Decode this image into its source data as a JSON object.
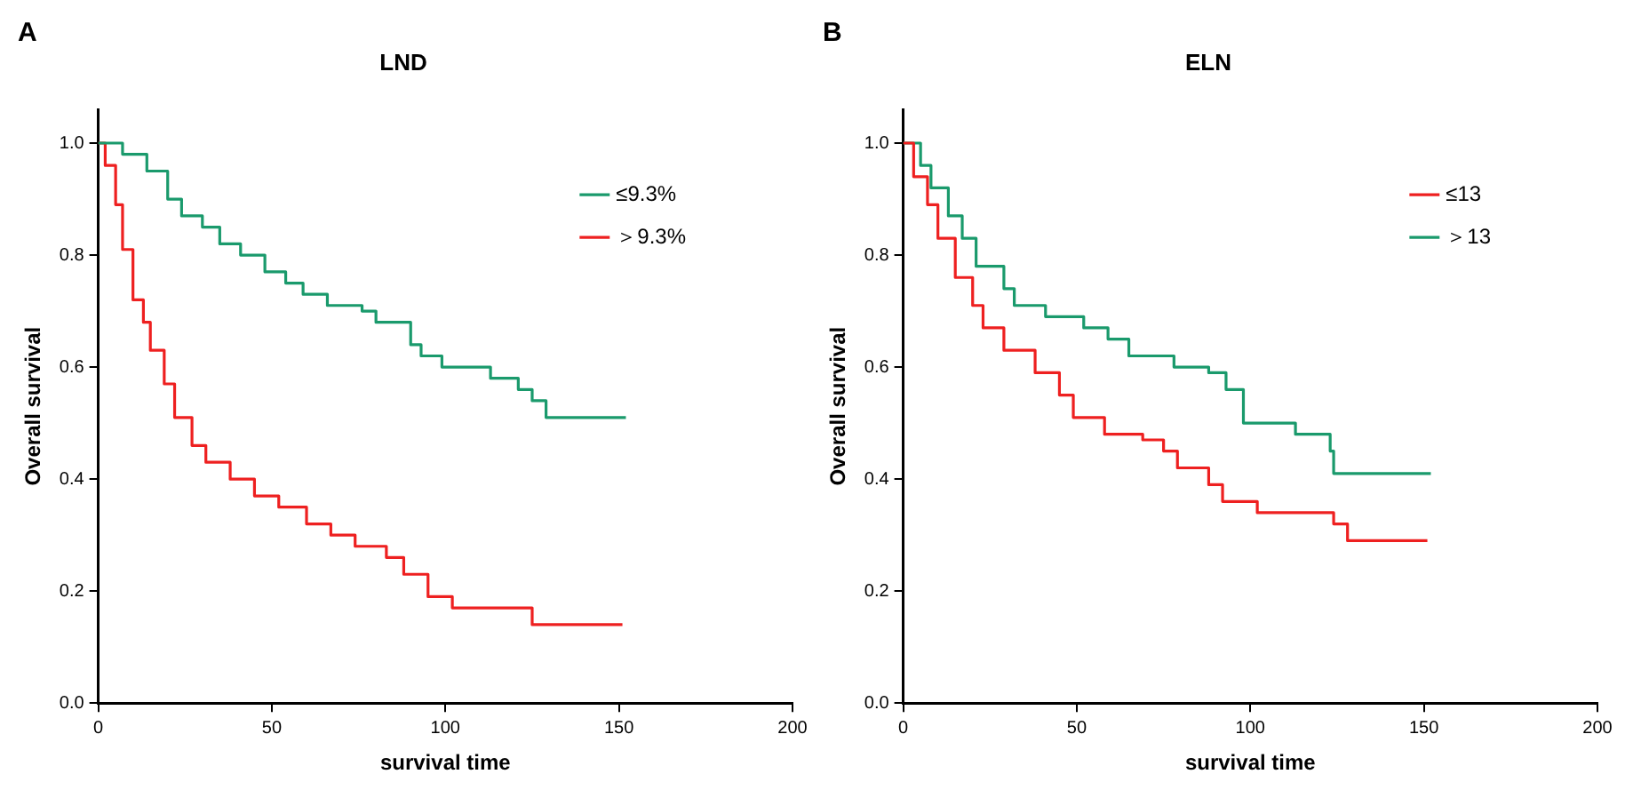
{
  "chart_data": [
    {
      "type": "step",
      "title": "LND",
      "xlabel": "survival time",
      "ylabel": "Overall survival",
      "annotations": [
        "A"
      ],
      "xlim": [
        0,
        200
      ],
      "xticks": [
        0,
        50,
        100,
        150,
        200
      ],
      "ylim": [
        0,
        1.06
      ],
      "yticks": [
        {
          "value": 0,
          "label": "0.0"
        },
        {
          "value": 0.2,
          "label": "0.2"
        },
        {
          "value": 0.4,
          "label": "0.4"
        },
        {
          "value": 0.6,
          "label": "0.6"
        },
        {
          "value": 0.8,
          "label": "0.8"
        },
        {
          "value": 1,
          "label": "1.0"
        }
      ],
      "grid": false,
      "legend": "top right",
      "marker": "none",
      "series": [
        {
          "name": "≤9.3%",
          "color": "#1a9a6c",
          "x": [
            0,
            7,
            14,
            20,
            24,
            30,
            35,
            41,
            48,
            54,
            59,
            66,
            76,
            80,
            88,
            90,
            93,
            99,
            113,
            121,
            125,
            129,
            152
          ],
          "values": [
            1,
            0.98,
            0.95,
            0.9,
            0.87,
            0.85,
            0.82,
            0.8,
            0.77,
            0.75,
            0.73,
            0.71,
            0.7,
            0.68,
            0.68,
            0.64,
            0.62,
            0.6,
            0.58,
            0.56,
            0.54,
            0.51,
            0.51
          ]
        },
        {
          "name": "＞9.3%",
          "color": "#ee2020",
          "x": [
            0,
            2,
            5,
            7,
            10,
            13,
            15,
            19,
            22,
            27,
            31,
            38,
            45,
            52,
            60,
            67,
            74,
            83,
            88,
            95,
            102,
            125,
            151
          ],
          "values": [
            1,
            0.96,
            0.89,
            0.81,
            0.72,
            0.68,
            0.63,
            0.57,
            0.51,
            0.46,
            0.43,
            0.4,
            0.37,
            0.35,
            0.32,
            0.3,
            0.28,
            0.26,
            0.23,
            0.19,
            0.17,
            0.14,
            0.14
          ]
        }
      ]
    },
    {
      "type": "step",
      "title": "ELN",
      "xlabel": "survival time",
      "ylabel": "Overall survival",
      "annotations": [
        "B"
      ],
      "xlim": [
        0,
        200
      ],
      "xticks": [
        0,
        50,
        100,
        150,
        200
      ],
      "ylim": [
        0,
        1.06
      ],
      "yticks": [
        {
          "value": 0,
          "label": "0.0"
        },
        {
          "value": 0.2,
          "label": "0.2"
        },
        {
          "value": 0.4,
          "label": "0.4"
        },
        {
          "value": 0.6,
          "label": "0.6"
        },
        {
          "value": 0.8,
          "label": "0.8"
        },
        {
          "value": 1,
          "label": "1.0"
        }
      ],
      "grid": false,
      "legend": "top right",
      "marker": "none",
      "series": [
        {
          "name": "≤13",
          "color": "#ee2020",
          "x": [
            0,
            3,
            7,
            10,
            15,
            20,
            23,
            29,
            38,
            45,
            49,
            58,
            69,
            75,
            79,
            88,
            92,
            102,
            124,
            128,
            151
          ],
          "values": [
            1,
            0.94,
            0.89,
            0.83,
            0.76,
            0.71,
            0.67,
            0.63,
            0.59,
            0.55,
            0.51,
            0.48,
            0.47,
            0.45,
            0.42,
            0.39,
            0.36,
            0.34,
            0.32,
            0.29,
            0.29
          ]
        },
        {
          "name": "＞13",
          "color": "#1a9a6c",
          "x": [
            0,
            5,
            8,
            13,
            17,
            21,
            29,
            32,
            41,
            52,
            59,
            65,
            78,
            88,
            93,
            98,
            113,
            123,
            124,
            152
          ],
          "values": [
            1,
            0.96,
            0.92,
            0.87,
            0.83,
            0.78,
            0.74,
            0.71,
            0.69,
            0.67,
            0.65,
            0.62,
            0.6,
            0.59,
            0.56,
            0.5,
            0.48,
            0.45,
            0.41,
            0.41
          ]
        }
      ]
    }
  ]
}
